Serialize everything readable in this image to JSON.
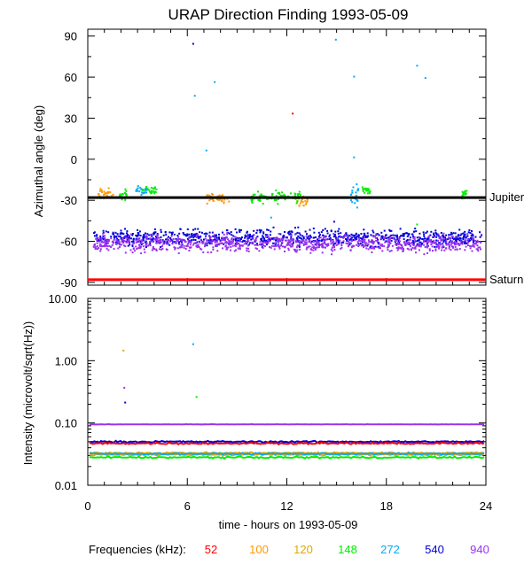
{
  "chart_data": [
    {
      "type": "scatter",
      "title": "URAP Direction Finding  1993-05-09",
      "ylabel": "Azimuthal angle (deg)",
      "xlim": [
        0,
        24
      ],
      "ylim": [
        -92,
        95
      ],
      "yticks": [
        90,
        60,
        30,
        0,
        -30,
        -60,
        -90
      ],
      "xticks": [
        0,
        6,
        12,
        18,
        24
      ],
      "grid": false,
      "reference_lines": [
        {
          "label": "Jupiter",
          "y": -28,
          "color": "#000000"
        },
        {
          "label": "Saturn",
          "y": -88,
          "color": "#ff0000"
        }
      ],
      "series": [
        {
          "name": "100",
          "color": "#ff9900",
          "clusters": [
            {
              "x": [
                0.5,
                1.5
              ],
              "y_center": -25,
              "y_spread": 6
            },
            {
              "x": [
                7,
                8.5
              ],
              "y_center": -28,
              "y_spread": 5
            },
            {
              "x": [
                12.5,
                13.2
              ],
              "y_center": -30,
              "y_spread": 5
            }
          ]
        },
        {
          "name": "148",
          "color": "#00ee00",
          "clusters": [
            {
              "x": [
                1.8,
                2.3
              ],
              "y_center": -25,
              "y_spread": 6
            },
            {
              "x": [
                3.2,
                4.2
              ],
              "y_center": -22,
              "y_spread": 4
            },
            {
              "x": [
                9.8,
                12.8
              ],
              "y_center": -27,
              "y_spread": 6
            },
            {
              "x": [
                16.5,
                17.0
              ],
              "y_center": -22,
              "y_spread": 4
            },
            {
              "x": [
                22.5,
                22.8
              ],
              "y_center": -25,
              "y_spread": 5
            }
          ]
        },
        {
          "name": "272",
          "color": "#00aaff",
          "clusters": [
            {
              "x": [
                2.8,
                3.5
              ],
              "y_center": -22,
              "y_spread": 4
            },
            {
              "x": [
                15.8,
                16.3
              ],
              "y_center": -25,
              "y_spread": 12
            }
          ]
        },
        {
          "name": "540",
          "color": "#0000dd",
          "clusters": [
            {
              "x": [
                0.3,
                23.7
              ],
              "y_center": -57,
              "y_spread": 9
            }
          ]
        },
        {
          "name": "940",
          "color": "#9933ee",
          "clusters": [
            {
              "x": [
                0.3,
                23.7
              ],
              "y_center": -61,
              "y_spread": 9
            }
          ]
        }
      ],
      "outliers": [
        {
          "x": 6.3,
          "y": 85,
          "series": "540"
        },
        {
          "x": 6.4,
          "y": 47,
          "series": "272"
        },
        {
          "x": 7.6,
          "y": 57,
          "series": "272"
        },
        {
          "x": 7.1,
          "y": 7,
          "series": "272"
        },
        {
          "x": 12.3,
          "y": 34,
          "series": "52"
        },
        {
          "x": 14.9,
          "y": 88,
          "series": "272"
        },
        {
          "x": 16.0,
          "y": 61,
          "series": "272"
        },
        {
          "x": 16.0,
          "y": 2,
          "series": "272"
        },
        {
          "x": 19.8,
          "y": 69,
          "series": "272"
        },
        {
          "x": 20.3,
          "y": 60,
          "series": "272"
        },
        {
          "x": 11.0,
          "y": -42,
          "series": "272"
        },
        {
          "x": 14.8,
          "y": -45,
          "series": "540"
        },
        {
          "x": 19.8,
          "y": -47,
          "series": "148"
        }
      ]
    },
    {
      "type": "line",
      "xlabel": "time - hours on 1993-05-09",
      "ylabel": "Intensity (microvolt/sqrt(Hz))",
      "xlim": [
        0,
        24
      ],
      "ylim": [
        0.01,
        10
      ],
      "yscale": "log",
      "yticks": [
        10.0,
        1.0,
        0.1,
        0.01
      ],
      "ytick_labels": [
        "10.00",
        "1.00",
        "0.10",
        "0.01"
      ],
      "xticks": [
        0,
        6,
        12,
        18,
        24
      ],
      "xtick_labels": [
        "0",
        "6",
        "12",
        "18",
        "24"
      ],
      "grid": false,
      "series": [
        {
          "name": "940",
          "color": "#9933ee",
          "level": 0.095
        },
        {
          "name": "540",
          "color": "#0000dd",
          "level": 0.05
        },
        {
          "name": "52",
          "color": "#ff0000",
          "level": 0.047
        },
        {
          "name": "120",
          "color": "#ddaa00",
          "level": 0.033
        },
        {
          "name": "100",
          "color": "#ff9900",
          "level": 0.031
        },
        {
          "name": "272",
          "color": "#00aaff",
          "level": 0.032
        },
        {
          "name": "148",
          "color": "#00ee00",
          "level": 0.028
        }
      ],
      "spikes": [
        {
          "x": 2.1,
          "y": 1.5,
          "series": "120"
        },
        {
          "x": 2.15,
          "y": 0.38,
          "series": "940"
        },
        {
          "x": 2.2,
          "y": 0.22,
          "series": "540"
        },
        {
          "x": 6.3,
          "y": 1.9,
          "series": "272"
        },
        {
          "x": 6.5,
          "y": 0.27,
          "series": "148"
        }
      ]
    }
  ],
  "legend": {
    "title": "Frequencies (kHz):",
    "items": [
      {
        "label": "52",
        "color": "#ff0000"
      },
      {
        "label": "100",
        "color": "#ff9900"
      },
      {
        "label": "120",
        "color": "#ddaa00"
      },
      {
        "label": "148",
        "color": "#00ee00"
      },
      {
        "label": "272",
        "color": "#00aaff"
      },
      {
        "label": "540",
        "color": "#0000dd"
      },
      {
        "label": "940",
        "color": "#9933ee"
      }
    ]
  }
}
